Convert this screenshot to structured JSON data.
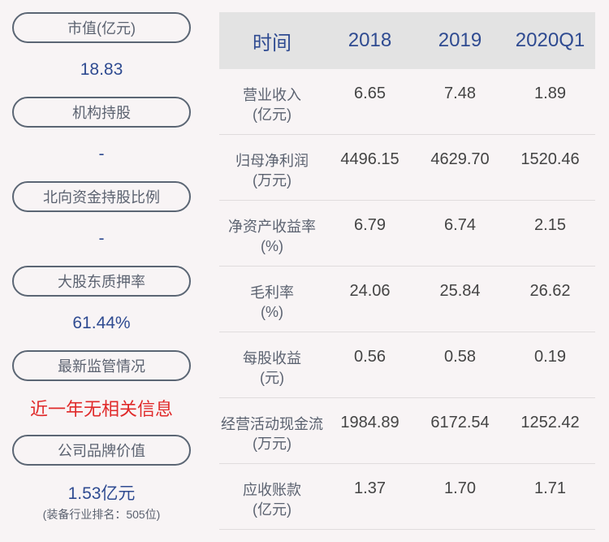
{
  "left_panel": {
    "items": [
      {
        "label": "市值(亿元)",
        "value": "18.83",
        "value_color": "#2f4b91"
      },
      {
        "label": "机构持股",
        "value": "-",
        "value_color": "#2f4b91"
      },
      {
        "label": "北向资金持股比例",
        "value": "-",
        "value_color": "#2f4b91"
      },
      {
        "label": "大股东质押率",
        "value": "61.44%",
        "value_color": "#2f4b91"
      },
      {
        "label": "最新监管情况",
        "value": "近一年无相关信息",
        "value_color": "#e02a2a"
      },
      {
        "label": "公司品牌价值",
        "value": "1.53亿元",
        "sub": "(装备行业排名：505位)",
        "value_color": "#2f4b91"
      }
    ]
  },
  "table": {
    "headers": [
      "时间",
      "2018",
      "2019",
      "2020Q1"
    ],
    "rows": [
      {
        "name": "营业收入",
        "unit": "(亿元)",
        "values": [
          "6.65",
          "7.48",
          "1.89"
        ]
      },
      {
        "name": "归母净利润",
        "unit": "(万元)",
        "values": [
          "4496.15",
          "4629.70",
          "1520.46"
        ]
      },
      {
        "name": "净资产收益率",
        "unit": "(%)",
        "values": [
          "6.79",
          "6.74",
          "2.15"
        ]
      },
      {
        "name": "毛利率",
        "unit": "(%)",
        "values": [
          "24.06",
          "25.84",
          "26.62"
        ]
      },
      {
        "name": "每股收益",
        "unit": "(元)",
        "values": [
          "0.56",
          "0.58",
          "0.19"
        ]
      },
      {
        "name": "经营活动现金流",
        "unit": "(万元)",
        "values": [
          "1984.89",
          "6172.54",
          "1252.42"
        ]
      },
      {
        "name": "应收账款",
        "unit": "(亿元)",
        "values": [
          "1.37",
          "1.70",
          "1.71"
        ]
      }
    ]
  },
  "colors": {
    "background": "#f8f4f5",
    "accent_blue": "#2f4b91",
    "alert_red": "#e02a2a",
    "header_bg": "#e3e3e3",
    "pill_border": "#5b6674"
  }
}
